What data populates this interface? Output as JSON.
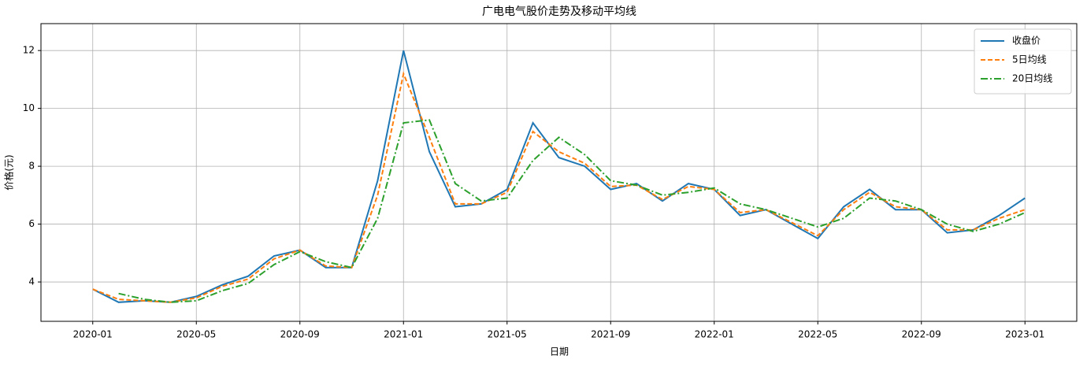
{
  "chart_data": {
    "type": "line",
    "title": "广电电气股价走势及移动平均线",
    "x_label": "日期",
    "y_label": "价格(元)",
    "x": [
      "2020-01",
      "2020-02",
      "2020-03",
      "2020-04",
      "2020-05",
      "2020-06",
      "2020-07",
      "2020-08",
      "2020-09",
      "2020-10",
      "2020-11",
      "2020-12",
      "2021-01",
      "2021-02",
      "2021-03",
      "2021-04",
      "2021-05",
      "2021-06",
      "2021-07",
      "2021-08",
      "2021-09",
      "2021-10",
      "2021-11",
      "2021-12",
      "2022-01",
      "2022-02",
      "2022-03",
      "2022-04",
      "2022-05",
      "2022-06",
      "2022-07",
      "2022-08",
      "2022-09",
      "2022-10",
      "2022-11",
      "2022-12",
      "2023-01"
    ],
    "series": [
      {
        "name": "收盘价",
        "color": "#1f77b4",
        "style": "solid",
        "values": [
          3.75,
          3.3,
          3.35,
          3.3,
          3.5,
          3.9,
          4.2,
          4.9,
          5.1,
          4.5,
          4.5,
          7.5,
          12.0,
          8.5,
          6.6,
          6.7,
          7.2,
          9.5,
          8.3,
          8.0,
          7.2,
          7.4,
          6.8,
          7.4,
          7.2,
          6.3,
          6.5,
          6.0,
          5.5,
          6.6,
          7.2,
          6.5,
          6.5,
          5.7,
          5.8,
          6.3,
          6.9
        ]
      },
      {
        "name": "5日均线",
        "color": "#ff7f0e",
        "style": "dashed",
        "values": [
          3.75,
          3.4,
          3.35,
          3.3,
          3.45,
          3.85,
          4.1,
          4.8,
          5.1,
          4.55,
          4.5,
          7.0,
          11.2,
          9.0,
          6.7,
          6.7,
          7.1,
          9.2,
          8.5,
          8.1,
          7.3,
          7.35,
          6.85,
          7.3,
          7.2,
          6.4,
          6.5,
          6.05,
          5.6,
          6.5,
          7.1,
          6.6,
          6.5,
          5.8,
          5.8,
          6.2,
          6.5
        ]
      },
      {
        "name": "20日均线",
        "color": "#2ca02c",
        "style": "dashdot",
        "values": [
          null,
          3.6,
          3.4,
          3.3,
          3.35,
          3.7,
          3.95,
          4.6,
          5.05,
          4.7,
          4.5,
          6.2,
          9.5,
          9.6,
          7.4,
          6.8,
          6.9,
          8.2,
          9.0,
          8.4,
          7.5,
          7.35,
          7.0,
          7.1,
          7.25,
          6.7,
          6.5,
          6.2,
          5.9,
          6.2,
          6.9,
          6.8,
          6.5,
          6.0,
          5.75,
          6.0,
          6.4
        ]
      }
    ],
    "xlim": [
      "2019-11",
      "2023-03"
    ],
    "xticks": [
      "2020-01",
      "2020-05",
      "2020-09",
      "2021-01",
      "2021-05",
      "2021-09",
      "2022-01",
      "2022-05",
      "2022-09",
      "2023-01"
    ],
    "ylim": [
      2.64,
      12.93
    ],
    "yticks": [
      4,
      6,
      8,
      10,
      12
    ],
    "grid": true,
    "legend": "upper right"
  }
}
